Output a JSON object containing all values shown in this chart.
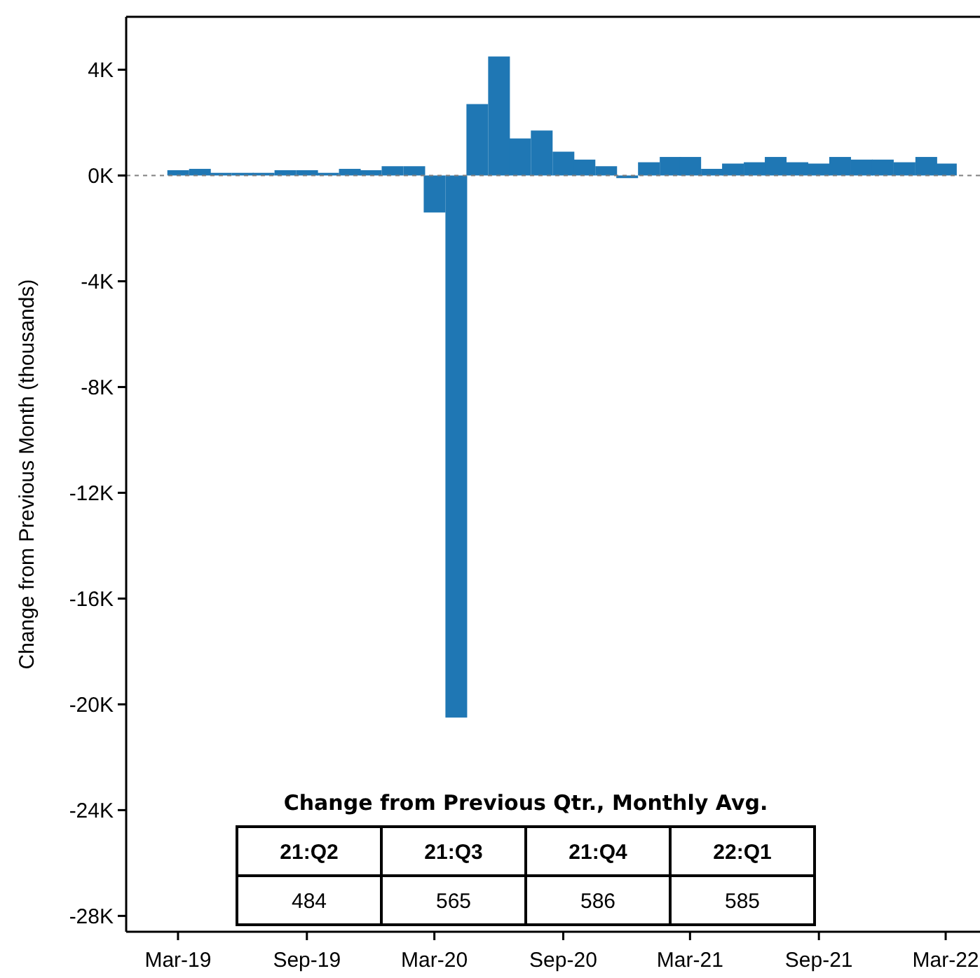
{
  "chart_data": {
    "type": "bar",
    "ylabel": "Change from Previous Month (thousands)",
    "x": [
      "2019-03",
      "2019-04",
      "2019-05",
      "2019-06",
      "2019-07",
      "2019-08",
      "2019-09",
      "2019-10",
      "2019-11",
      "2019-12",
      "2020-01",
      "2020-02",
      "2020-03",
      "2020-04",
      "2020-05",
      "2020-06",
      "2020-07",
      "2020-08",
      "2020-09",
      "2020-10",
      "2020-11",
      "2020-12",
      "2021-01",
      "2021-02",
      "2021-03",
      "2021-04",
      "2021-05",
      "2021-06",
      "2021-07",
      "2021-08",
      "2021-09",
      "2021-10",
      "2021-11",
      "2021-12",
      "2022-01",
      "2022-02",
      "2022-03"
    ],
    "values": [
      0.2,
      0.25,
      0.1,
      0.1,
      0.1,
      0.2,
      0.2,
      0.1,
      0.25,
      0.2,
      0.35,
      0.35,
      -1.4,
      -20.5,
      2.7,
      4.5,
      1.4,
      1.7,
      0.9,
      0.6,
      0.35,
      -0.1,
      0.5,
      0.7,
      0.7,
      0.25,
      0.45,
      0.5,
      0.7,
      0.5,
      0.45,
      0.7,
      0.6,
      0.6,
      0.5,
      0.7,
      0.45
    ],
    "color": "#1f77b4",
    "xlim": [
      "2018-12-17",
      "2022-04-19"
    ],
    "xticks": [
      {
        "value": "2019-03",
        "label": "Mar-19"
      },
      {
        "value": "2019-09",
        "label": "Sep-19"
      },
      {
        "value": "2020-03",
        "label": "Mar-20"
      },
      {
        "value": "2020-09",
        "label": "Sep-20"
      },
      {
        "value": "2021-03",
        "label": "Mar-21"
      },
      {
        "value": "2021-09",
        "label": "Sep-21"
      },
      {
        "value": "2022-03",
        "label": "Mar-22"
      }
    ],
    "ylim": [
      -28.6,
      6
    ],
    "yticks": [
      {
        "value": 4,
        "label": "4K"
      },
      {
        "value": 0,
        "label": "0K"
      },
      {
        "value": -4,
        "label": "-4K"
      },
      {
        "value": -8,
        "label": "-8K"
      },
      {
        "value": -12,
        "label": "-12K"
      },
      {
        "value": -16,
        "label": "-16K"
      },
      {
        "value": -20,
        "label": "-20K"
      },
      {
        "value": -24,
        "label": "-24K"
      },
      {
        "value": -28,
        "label": "-28K"
      }
    ],
    "ref_lines": [
      {
        "axis": "y",
        "value": 0,
        "color": "#808080",
        "line_style": "dashed"
      }
    ],
    "annotations": [
      "Change from Previous Qtr., Monthly Avg.",
      "21:Q2",
      "21:Q3",
      "21:Q4",
      "22:Q1",
      "484",
      "565",
      "586",
      "585"
    ],
    "grid": false
  }
}
